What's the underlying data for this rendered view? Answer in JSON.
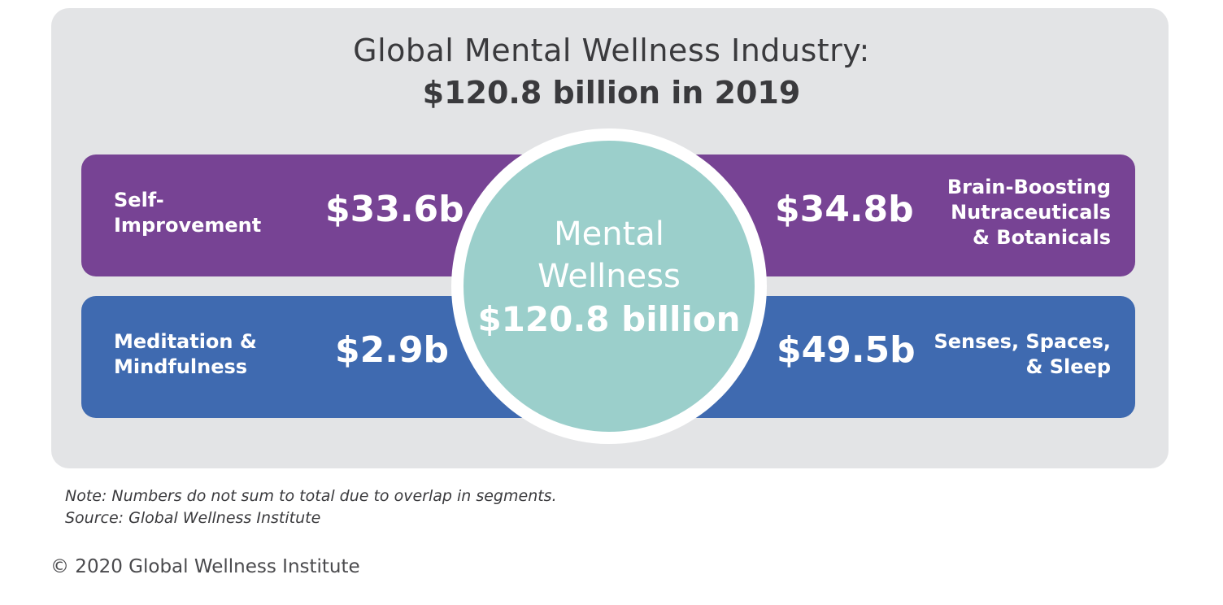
{
  "title": {
    "line1": "Global Mental Wellness Industry:",
    "line2": "$120.8 billion in 2019"
  },
  "center": {
    "name_line1": "Mental",
    "name_line2": "Wellness",
    "value": "$120.8 billion"
  },
  "segments": [
    {
      "label_line1": "Self-",
      "label_line2": "Improvement",
      "value": "$33.6b"
    },
    {
      "label_line1": "Brain-Boosting",
      "label_line2": "Nutraceuticals",
      "label_line3": "& Botanicals",
      "value": "$34.8b"
    },
    {
      "label_line1": "Meditation &",
      "label_line2": "Mindfulness",
      "value": "$2.9b"
    },
    {
      "label_line1": "Senses, Spaces,",
      "label_line2": "& Sleep",
      "value": "$49.5b"
    }
  ],
  "colors": {
    "panel": "#e3e4e6",
    "top_bar": "#774394",
    "bottom_bar": "#3f6ab0",
    "circle": "#9bcfcb"
  },
  "footer": {
    "note": "Note: Numbers do not sum to total due to overlap in segments.",
    "source": "Source: Global Wellness Institute",
    "copyright": "© 2020 Global Wellness Institute"
  }
}
